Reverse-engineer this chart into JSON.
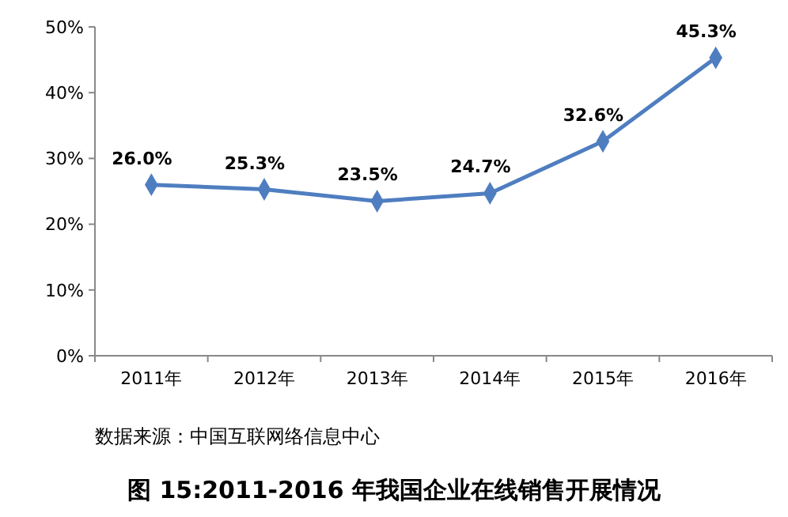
{
  "chart_data": {
    "type": "line",
    "title": "图 15:2011-2016 年我国企业在线销售开展情况",
    "annotations": [
      "数据来源：中国互联网络信息中心"
    ],
    "categories": [
      "2011年",
      "2012年",
      "2013年",
      "2014年",
      "2015年",
      "2016年"
    ],
    "series": [
      {
        "color": "#4f7ec0",
        "values": [
          26.0,
          25.3,
          23.5,
          24.7,
          32.6,
          45.3
        ],
        "value_labels": [
          "26.0%",
          "25.3%",
          "23.5%",
          "24.7%",
          "32.6%",
          "45.3%"
        ]
      }
    ],
    "ylim": [
      0,
      50
    ],
    "yticks": [
      {
        "value": 0,
        "label": "0%"
      },
      {
        "value": 10,
        "label": "10%"
      },
      {
        "value": 20,
        "label": "20%"
      },
      {
        "value": 30,
        "label": "30%"
      },
      {
        "value": 40,
        "label": "40%"
      },
      {
        "value": 50,
        "label": "50%"
      }
    ],
    "grid": false,
    "marker": "diamond",
    "line_style": "solid"
  }
}
